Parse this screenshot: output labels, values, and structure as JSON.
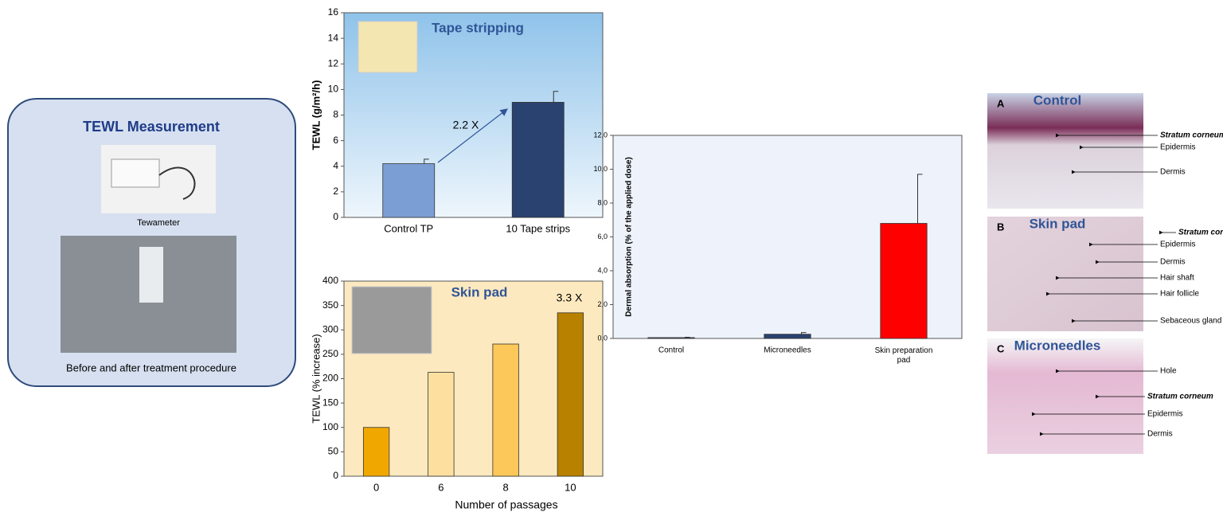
{
  "chart_data": [
    {
      "type": "bar",
      "title": "Tape stripping",
      "ylabel": "TEWL (g/m²/h)",
      "categories": [
        "Control TP",
        "10 Tape strips"
      ],
      "values": [
        4.2,
        9.0
      ],
      "errors": [
        0.35,
        0.85
      ],
      "colors": [
        "#7b9fd4",
        "#2a4270"
      ],
      "annotation": "2.2 X",
      "ylim": [
        0,
        16
      ],
      "yticks": [
        0,
        2,
        4,
        6,
        8,
        10,
        12,
        14,
        16
      ]
    },
    {
      "type": "bar",
      "title": "Skin pad",
      "ylabel": "TEWL (% increase)",
      "xlabel": "Number of passages",
      "categories": [
        "0",
        "6",
        "8",
        "10"
      ],
      "values": [
        100,
        213,
        271,
        335
      ],
      "colors": [
        "#f0a800",
        "#fde0a0",
        "#fdc85a",
        "#b88200"
      ],
      "annotation": "3.3 X",
      "ylim": [
        0,
        400
      ],
      "yticks": [
        0,
        50,
        100,
        150,
        200,
        250,
        300,
        350,
        400
      ]
    },
    {
      "type": "bar",
      "ylabel": "Dermal absorption (% of the applied dose)",
      "categories": [
        "Control",
        "Microneedles",
        "Skin preparation pad"
      ],
      "values": [
        0.05,
        0.25,
        6.8
      ],
      "errors": [
        0.02,
        0.1,
        2.9
      ],
      "colors": [
        "#2a4270",
        "#2a4270",
        "#ff0000"
      ],
      "ylim": [
        0,
        12
      ],
      "yticks": [
        {
          "value": 0,
          "label": "0,0"
        },
        {
          "value": 2,
          "label": "2,0"
        },
        {
          "value": 4,
          "label": "4,0"
        },
        {
          "value": 6,
          "label": "6,0"
        },
        {
          "value": 8,
          "label": "8,0"
        },
        {
          "value": 10,
          "label": "10,0"
        },
        {
          "value": 12,
          "label": "12,0"
        }
      ]
    }
  ],
  "measurement": {
    "title": "TEWL Measurement",
    "device": "Tewameter",
    "caption": "Before and after treatment procedure"
  },
  "histology": [
    {
      "letter": "A",
      "title": "Control",
      "labels": [
        "Stratum corneum",
        "Epidermis",
        "Dermis"
      ]
    },
    {
      "letter": "B",
      "title": "Skin pad",
      "labels": [
        "Stratum corneum",
        "Epidermis",
        "Dermis",
        "Hair shaft",
        "Hair follicle",
        "Sebaceous gland"
      ]
    },
    {
      "letter": "C",
      "title": "Microneedles",
      "labels": [
        "Hole",
        "Stratum corneum",
        "Epidermis",
        "Dermis"
      ]
    }
  ]
}
